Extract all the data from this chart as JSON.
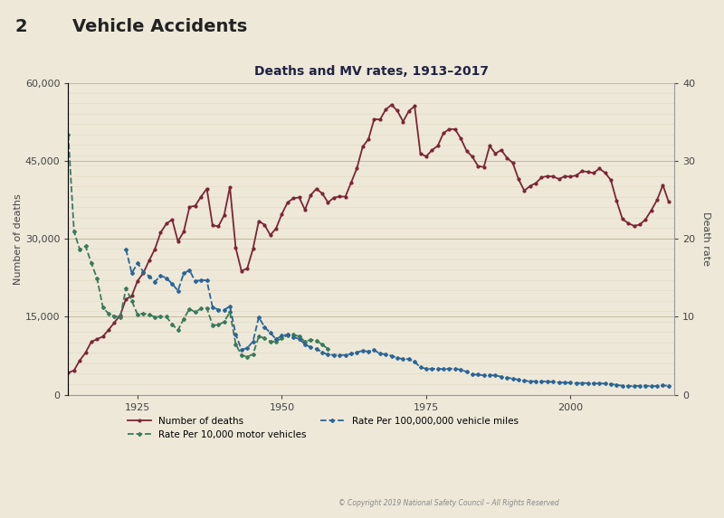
{
  "title_number": "2",
  "title_main": "Vehicle Accidents",
  "subtitle": "Deaths and MV rates, 1913–2017",
  "copyright": "© Copyright 2019 National Safety Council – All Rights Reserved",
  "background_color": "#ede8d8",
  "left_ylabel": "Number of deaths",
  "right_ylabel": "Death rate",
  "ylim_left": [
    0,
    60000
  ],
  "ylim_right": [
    0,
    40
  ],
  "yticks_left": [
    0,
    15000,
    30000,
    45000,
    60000
  ],
  "yticks_right": [
    0,
    10,
    20,
    30,
    40
  ],
  "xticks": [
    1925,
    1950,
    1975,
    2000
  ],
  "xlim": [
    1913,
    2018
  ],
  "rate_scale": 1500,
  "deaths": {
    "years": [
      1913,
      1914,
      1915,
      1916,
      1917,
      1918,
      1919,
      1920,
      1921,
      1922,
      1923,
      1924,
      1925,
      1926,
      1927,
      1928,
      1929,
      1930,
      1931,
      1932,
      1933,
      1934,
      1935,
      1936,
      1937,
      1938,
      1939,
      1940,
      1941,
      1942,
      1943,
      1944,
      1945,
      1946,
      1947,
      1948,
      1949,
      1950,
      1951,
      1952,
      1953,
      1954,
      1955,
      1956,
      1957,
      1958,
      1959,
      1960,
      1961,
      1962,
      1963,
      1964,
      1965,
      1966,
      1967,
      1968,
      1969,
      1970,
      1971,
      1972,
      1973,
      1974,
      1975,
      1976,
      1977,
      1978,
      1979,
      1980,
      1981,
      1982,
      1983,
      1984,
      1985,
      1986,
      1987,
      1988,
      1989,
      1990,
      1991,
      1992,
      1993,
      1994,
      1995,
      1996,
      1997,
      1998,
      1999,
      2000,
      2001,
      2002,
      2003,
      2004,
      2005,
      2006,
      2007,
      2008,
      2009,
      2010,
      2011,
      2012,
      2013,
      2014,
      2015,
      2016,
      2017
    ],
    "values": [
      4200,
      4700,
      6600,
      8100,
      10200,
      10700,
      11200,
      12500,
      13900,
      15300,
      18400,
      19000,
      21900,
      23400,
      25800,
      28000,
      31200,
      32900,
      33700,
      29500,
      31360,
      36101,
      36369,
      38089,
      39643,
      32582,
      32386,
      34501,
      39969,
      28309,
      23823,
      24282,
      28076,
      33411,
      32697,
      30700,
      32000,
      34763,
      36996,
      37794,
      37955,
      35586,
      38426,
      39628,
      38702,
      36981,
      37910,
      38137,
      38091,
      40804,
      43564,
      47700,
      49163,
      53041,
      52924,
      54862,
      55791,
      54633,
      52542,
      54589,
      55511,
      46402,
      45853,
      47038,
      47878,
      50331,
      51093,
      51091,
      49301,
      46917,
      45779,
      43945,
      43825,
      47865,
      46386,
      47087,
      45582,
      44599,
      41462,
      39250,
      40150,
      40716,
      41817,
      42065,
      41967,
      41501,
      42013,
      41945,
      42196,
      43005,
      42884,
      42636,
      43510,
      42708,
      41259,
      37261,
      33808,
      32999,
      32479,
      32719,
      33736,
      35485,
      37461,
      40327,
      37133
    ],
    "color": "#7b2535",
    "linestyle": "-",
    "linewidth": 1.3,
    "marker": "o",
    "markersize": 2.0,
    "label": "Number of deaths"
  },
  "rate_10k": {
    "years": [
      1913,
      1914,
      1915,
      1916,
      1917,
      1918,
      1919,
      1920,
      1921,
      1922,
      1923,
      1924,
      1925,
      1926,
      1927,
      1928,
      1929,
      1930,
      1931,
      1932,
      1933,
      1934,
      1935,
      1936,
      1937,
      1938,
      1939,
      1940,
      1941,
      1942,
      1943,
      1944,
      1945,
      1946,
      1947,
      1948,
      1949,
      1950,
      1951,
      1952,
      1953,
      1954,
      1955,
      1956,
      1957,
      1958
    ],
    "values_rate": [
      33.38,
      20.9,
      18.62,
      19.04,
      16.89,
      14.86,
      11.21,
      10.37,
      10.08,
      9.95,
      13.65,
      12.04,
      10.29,
      10.43,
      10.27,
      9.97,
      10.02,
      9.99,
      9.04,
      8.27,
      9.73,
      11.02,
      10.59,
      11.07,
      11.11,
      8.94,
      8.95,
      9.35,
      10.6,
      6.5,
      5.07,
      4.87,
      5.19,
      7.45,
      7.28,
      6.82,
      6.84,
      7.24,
      7.65,
      7.67,
      7.5,
      6.8,
      7.07,
      6.93,
      6.43,
      5.87
    ],
    "color": "#3a7a5a",
    "linestyle": "--",
    "linewidth": 1.3,
    "marker": "D",
    "markersize": 2.0,
    "label": "Rate Per 10,000 motor vehicles"
  },
  "rate_100m": {
    "years": [
      1923,
      1924,
      1925,
      1926,
      1927,
      1928,
      1929,
      1930,
      1931,
      1932,
      1933,
      1934,
      1935,
      1936,
      1937,
      1938,
      1939,
      1940,
      1941,
      1942,
      1943,
      1944,
      1945,
      1946,
      1947,
      1948,
      1949,
      1950,
      1951,
      1952,
      1953,
      1954,
      1955,
      1956,
      1957,
      1958,
      1959,
      1960,
      1961,
      1962,
      1963,
      1964,
      1965,
      1966,
      1967,
      1968,
      1969,
      1970,
      1971,
      1972,
      1973,
      1974,
      1975,
      1976,
      1977,
      1978,
      1979,
      1980,
      1981,
      1982,
      1983,
      1984,
      1985,
      1986,
      1987,
      1988,
      1989,
      1990,
      1991,
      1992,
      1993,
      1994,
      1995,
      1996,
      1997,
      1998,
      1999,
      2000,
      2001,
      2002,
      2003,
      2004,
      2005,
      2006,
      2007,
      2008,
      2009,
      2010,
      2011,
      2012,
      2013,
      2014,
      2015,
      2016,
      2017
    ],
    "values_rate": [
      18.65,
      15.58,
      16.89,
      15.77,
      15.19,
      14.5,
      15.26,
      14.97,
      14.22,
      13.34,
      15.56,
      15.98,
      14.52,
      14.74,
      14.63,
      11.22,
      10.91,
      10.88,
      11.35,
      7.78,
      5.78,
      5.98,
      6.83,
      9.94,
      8.68,
      7.95,
      7.11,
      7.59,
      7.71,
      7.39,
      7.16,
      6.46,
      6.09,
      5.89,
      5.44,
      5.14,
      5.11,
      5.1,
      5.08,
      5.24,
      5.44,
      5.64,
      5.54,
      5.73,
      5.26,
      5.19,
      5.0,
      4.74,
      4.57,
      4.57,
      4.24,
      3.5,
      3.35,
      3.3,
      3.35,
      3.27,
      3.35,
      3.35,
      3.2,
      2.95,
      2.58,
      2.58,
      2.47,
      2.52,
      2.46,
      2.32,
      2.17,
      2.08,
      1.91,
      1.8,
      1.72,
      1.73,
      1.72,
      1.69,
      1.64,
      1.58,
      1.55,
      1.53,
      1.49,
      1.51,
      1.48,
      1.46,
      1.46,
      1.42,
      1.36,
      1.27,
      1.14,
      1.11,
      1.1,
      1.14,
      1.17,
      1.08,
      1.12,
      1.18,
      1.16
    ],
    "color": "#2a6496",
    "linestyle": "--",
    "linewidth": 1.3,
    "marker": "P",
    "markersize": 2.5,
    "label": "Rate Per 100,000,000 vehicle miles"
  }
}
